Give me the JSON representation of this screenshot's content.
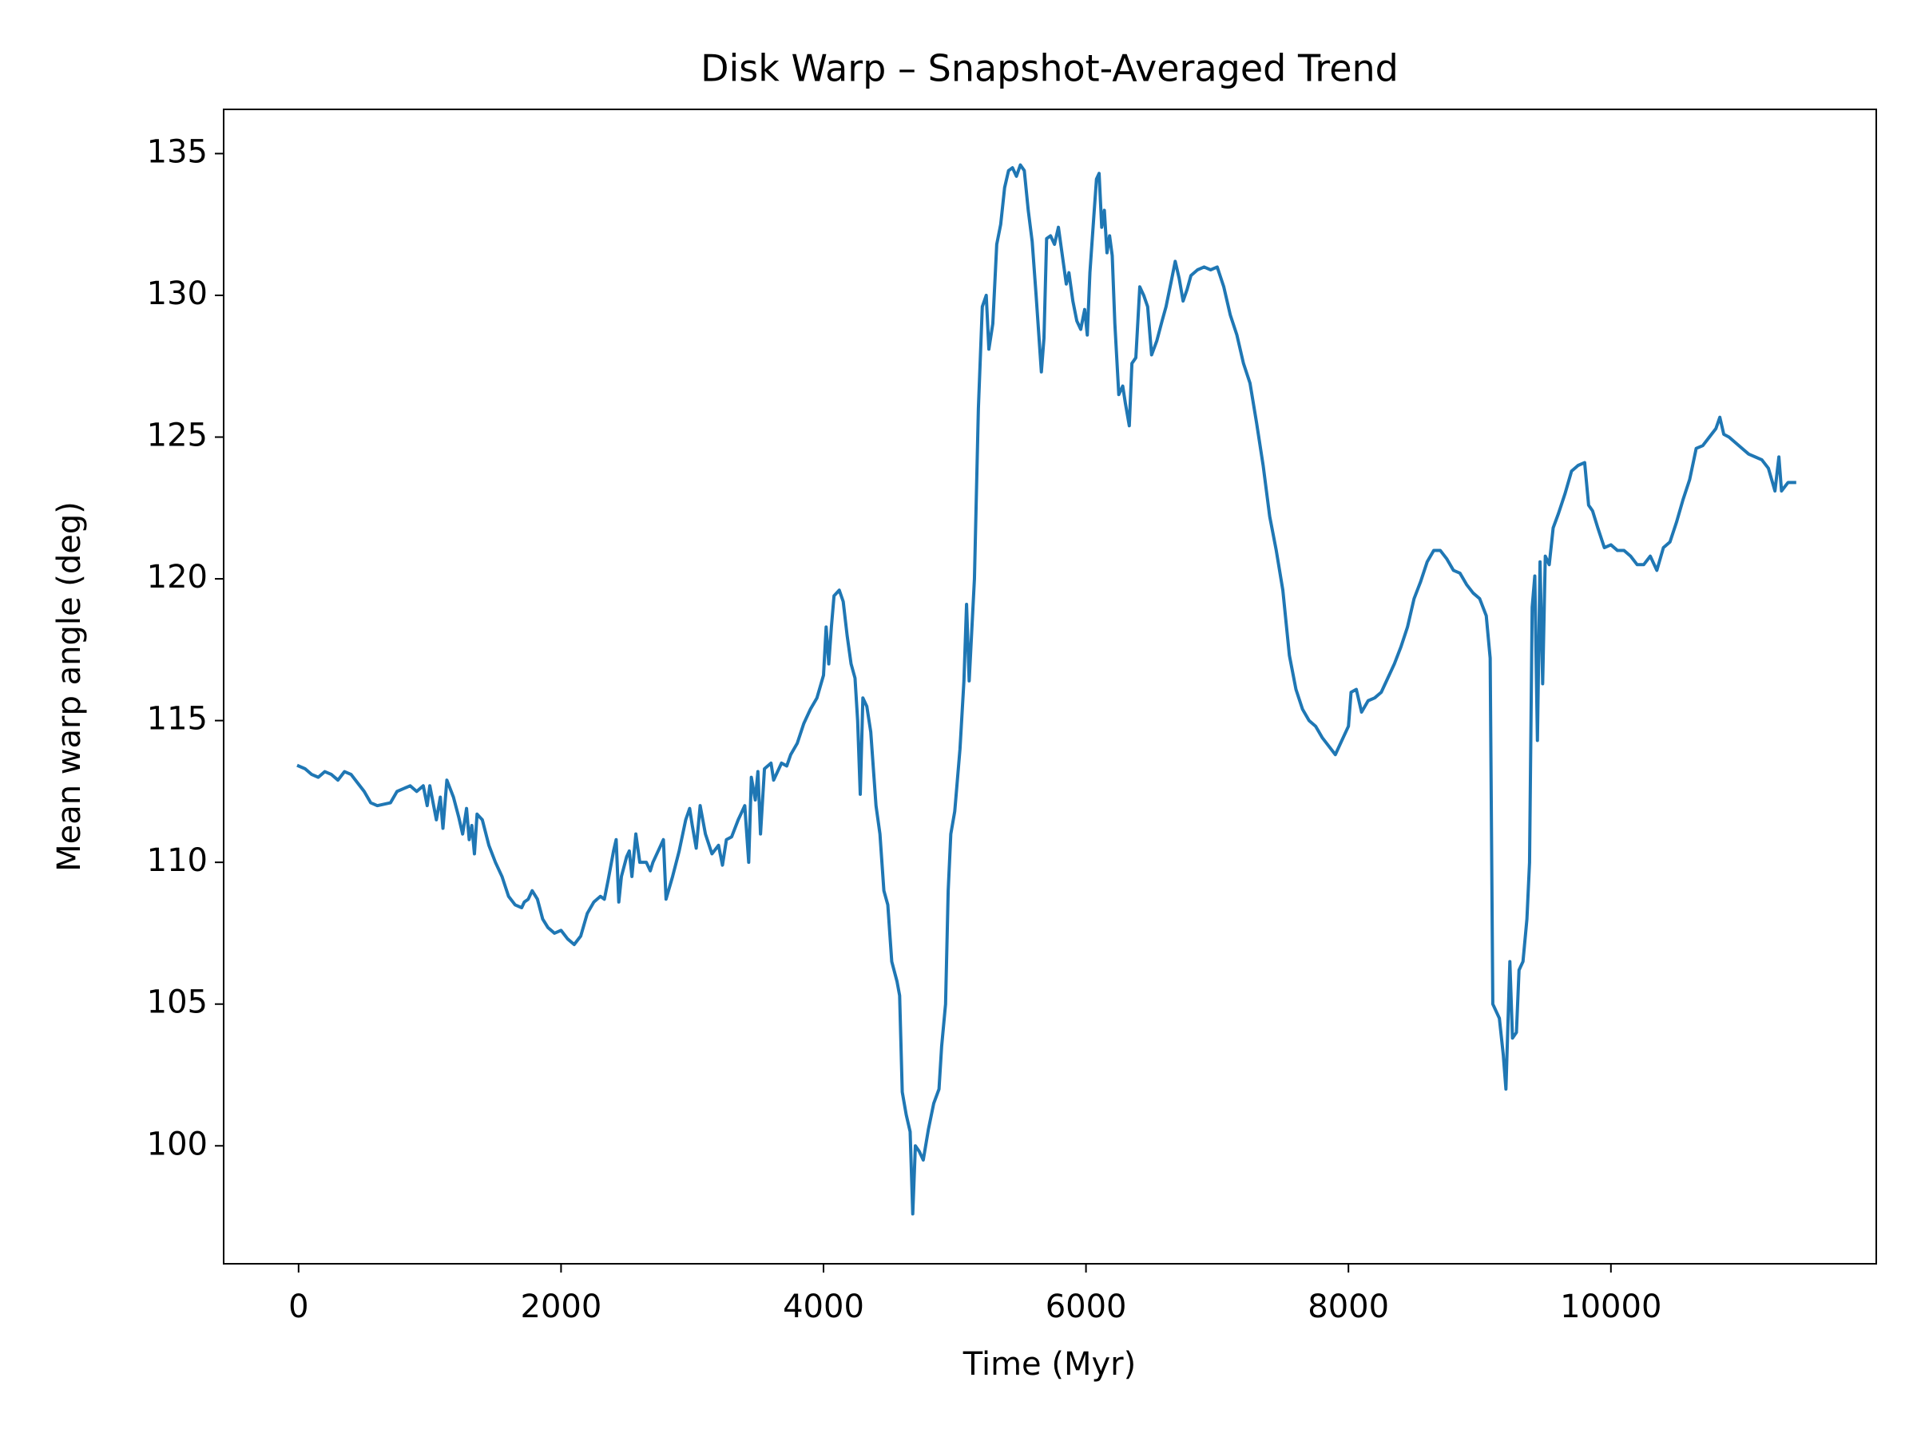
{
  "chart_data": {
    "type": "line",
    "title": "Disk Warp – Snapshot-Averaged Trend",
    "xlabel": "Time (Myr)",
    "ylabel": "Mean warp angle (deg)",
    "color": "#1f77b4",
    "xlim": [
      -571,
      12022
    ],
    "ylim": [
      95.84,
      136.56
    ],
    "xticks": [
      0,
      2000,
      4000,
      6000,
      8000,
      10000
    ],
    "yticks": [
      100,
      105,
      110,
      115,
      120,
      125,
      130,
      135
    ],
    "x": [
      0,
      50,
      100,
      150,
      200,
      250,
      300,
      350,
      400,
      450,
      500,
      550,
      600,
      700,
      750,
      800,
      850,
      900,
      950,
      980,
      1000,
      1050,
      1080,
      1100,
      1130,
      1180,
      1220,
      1250,
      1280,
      1300,
      1320,
      1340,
      1360,
      1400,
      1450,
      1500,
      1550,
      1600,
      1650,
      1700,
      1720,
      1750,
      1780,
      1820,
      1860,
      1900,
      1950,
      2000,
      2050,
      2100,
      2150,
      2200,
      2250,
      2300,
      2330,
      2360,
      2400,
      2420,
      2440,
      2460,
      2500,
      2520,
      2540,
      2570,
      2600,
      2650,
      2680,
      2700,
      2750,
      2780,
      2800,
      2850,
      2900,
      2950,
      2980,
      3000,
      3030,
      3060,
      3100,
      3150,
      3200,
      3230,
      3260,
      3300,
      3350,
      3400,
      3430,
      3450,
      3480,
      3500,
      3520,
      3550,
      3600,
      3620,
      3680,
      3720,
      3750,
      3800,
      3850,
      3900,
      3950,
      4000,
      4020,
      4040,
      4060,
      4080,
      4120,
      4150,
      4180,
      4210,
      4240,
      4260,
      4280,
      4300,
      4330,
      4360,
      4400,
      4430,
      4460,
      4490,
      4520,
      4560,
      4580,
      4600,
      4630,
      4660,
      4680,
      4700,
      4730,
      4760,
      4800,
      4840,
      4880,
      4900,
      4930,
      4950,
      4970,
      5000,
      5040,
      5070,
      5090,
      5110,
      5150,
      5180,
      5210,
      5240,
      5260,
      5290,
      5320,
      5350,
      5380,
      5410,
      5440,
      5470,
      5500,
      5530,
      5560,
      5590,
      5620,
      5660,
      5680,
      5700,
      5730,
      5760,
      5790,
      5820,
      5850,
      5870,
      5900,
      5930,
      5960,
      5990,
      6010,
      6030,
      6060,
      6080,
      6100,
      6120,
      6140,
      6160,
      6180,
      6200,
      6220,
      6250,
      6280,
      6300,
      6330,
      6350,
      6380,
      6410,
      6440,
      6470,
      6500,
      6540,
      6580,
      6610,
      6650,
      6680,
      6710,
      6740,
      6770,
      6800,
      6850,
      6900,
      6950,
      7000,
      7050,
      7100,
      7150,
      7200,
      7250,
      7300,
      7350,
      7400,
      7450,
      7500,
      7550,
      7600,
      7650,
      7700,
      7750,
      7800,
      7850,
      7900,
      7950,
      8000,
      8020,
      8060,
      8100,
      8150,
      8200,
      8250,
      8300,
      8350,
      8400,
      8450,
      8500,
      8550,
      8600,
      8650,
      8700,
      8750,
      8800,
      8850,
      8900,
      8950,
      9000,
      9050,
      9080,
      9100,
      9120,
      9150,
      9180,
      9200,
      9230,
      9250,
      9280,
      9300,
      9330,
      9360,
      9380,
      9400,
      9420,
      9440,
      9460,
      9480,
      9500,
      9530,
      9560,
      9600,
      9650,
      9700,
      9750,
      9800,
      9830,
      9860,
      9900,
      9950,
      10000,
      10050,
      10100,
      10150,
      10200,
      10250,
      10300,
      10350,
      10400,
      10450,
      10500,
      10550,
      10600,
      10650,
      10700,
      10750,
      10800,
      10830,
      10860,
      10900,
      10950,
      11000,
      11050,
      11100,
      11150,
      11200,
      11250,
      11280,
      11300,
      11350,
      11400
    ],
    "values": [
      113.4,
      113.3,
      113.1,
      113.0,
      113.2,
      113.1,
      112.9,
      113.2,
      113.1,
      112.8,
      112.5,
      112.1,
      112.0,
      112.1,
      112.5,
      112.6,
      112.7,
      112.5,
      112.7,
      112.0,
      112.7,
      111.5,
      112.3,
      111.2,
      112.9,
      112.3,
      111.6,
      111.0,
      111.9,
      110.8,
      111.3,
      110.3,
      111.7,
      111.5,
      110.6,
      110.0,
      109.5,
      108.8,
      108.5,
      108.4,
      108.6,
      108.7,
      109.0,
      108.7,
      108.0,
      107.7,
      107.5,
      107.6,
      107.3,
      107.1,
      107.4,
      108.2,
      108.6,
      108.8,
      108.7,
      109.4,
      110.4,
      110.8,
      108.6,
      109.5,
      110.2,
      110.4,
      109.5,
      111.0,
      110.0,
      110.0,
      109.7,
      110.0,
      110.5,
      110.8,
      108.7,
      109.5,
      110.4,
      111.5,
      111.9,
      111.3,
      110.5,
      112.0,
      111.0,
      110.3,
      110.6,
      109.9,
      110.8,
      110.9,
      111.5,
      112.0,
      110.0,
      113.0,
      112.2,
      113.2,
      111.0,
      113.3,
      113.5,
      112.9,
      113.5,
      113.4,
      113.8,
      114.2,
      114.9,
      115.4,
      115.8,
      116.6,
      118.3,
      117.0,
      118.3,
      119.4,
      119.6,
      119.2,
      118.0,
      117.0,
      116.5,
      115.0,
      112.4,
      115.8,
      115.5,
      114.6,
      112.0,
      111.0,
      109.0,
      108.5,
      106.5,
      105.8,
      105.3,
      101.9,
      101.1,
      100.5,
      97.6,
      100.0,
      99.8,
      99.5,
      100.6,
      101.5,
      102.0,
      103.5,
      105.0,
      109.0,
      111.0,
      111.8,
      114.0,
      116.4,
      119.1,
      116.4,
      120.0,
      126.0,
      129.6,
      130.0,
      128.1,
      129.0,
      131.8,
      132.5,
      133.8,
      134.4,
      134.5,
      134.2,
      134.6,
      134.4,
      133.0,
      131.9,
      130.0,
      127.3,
      128.5,
      132.0,
      132.1,
      131.8,
      132.4,
      131.4,
      130.4,
      130.8,
      129.8,
      129.1,
      128.8,
      129.5,
      128.6,
      130.8,
      132.8,
      134.1,
      134.3,
      132.4,
      133.0,
      131.5,
      132.1,
      131.4,
      129.0,
      126.5,
      126.8,
      126.2,
      125.4,
      127.6,
      127.8,
      130.3,
      130.0,
      129.6,
      127.9,
      128.4,
      129.1,
      129.6,
      130.5,
      131.2,
      130.6,
      129.8,
      130.2,
      130.7,
      130.9,
      131.0,
      130.9,
      131.0,
      130.3,
      129.3,
      128.6,
      127.6,
      126.9,
      125.5,
      124.0,
      122.2,
      121.0,
      119.6,
      117.3,
      116.1,
      115.4,
      115.0,
      114.8,
      114.4,
      114.1,
      113.8,
      114.3,
      114.8,
      116.0,
      116.1,
      115.3,
      115.7,
      115.8,
      116.0,
      116.5,
      117.0,
      117.6,
      118.3,
      119.3,
      119.9,
      120.6,
      121.0,
      121.0,
      120.7,
      120.3,
      120.2,
      119.8,
      119.5,
      119.3,
      118.7,
      117.2,
      105.0,
      104.8,
      104.5,
      103.2,
      102.0,
      106.5,
      103.8,
      104.0,
      106.2,
      106.5,
      108.0,
      110.0,
      119.0,
      120.1,
      114.3,
      120.6,
      116.3,
      120.8,
      120.5,
      121.8,
      122.3,
      123.0,
      123.8,
      124.0,
      124.1,
      122.6,
      122.4,
      121.8,
      121.1,
      121.2,
      121.0,
      121.0,
      120.8,
      120.5,
      120.5,
      120.8,
      120.3,
      121.1,
      121.3,
      122.0,
      122.8,
      123.5,
      124.6,
      124.7,
      125.0,
      125.3,
      125.7,
      125.1,
      125.0,
      124.8,
      124.6,
      124.4,
      124.3,
      124.2,
      123.9,
      123.1,
      124.3,
      123.1,
      123.4,
      123.4
    ]
  }
}
